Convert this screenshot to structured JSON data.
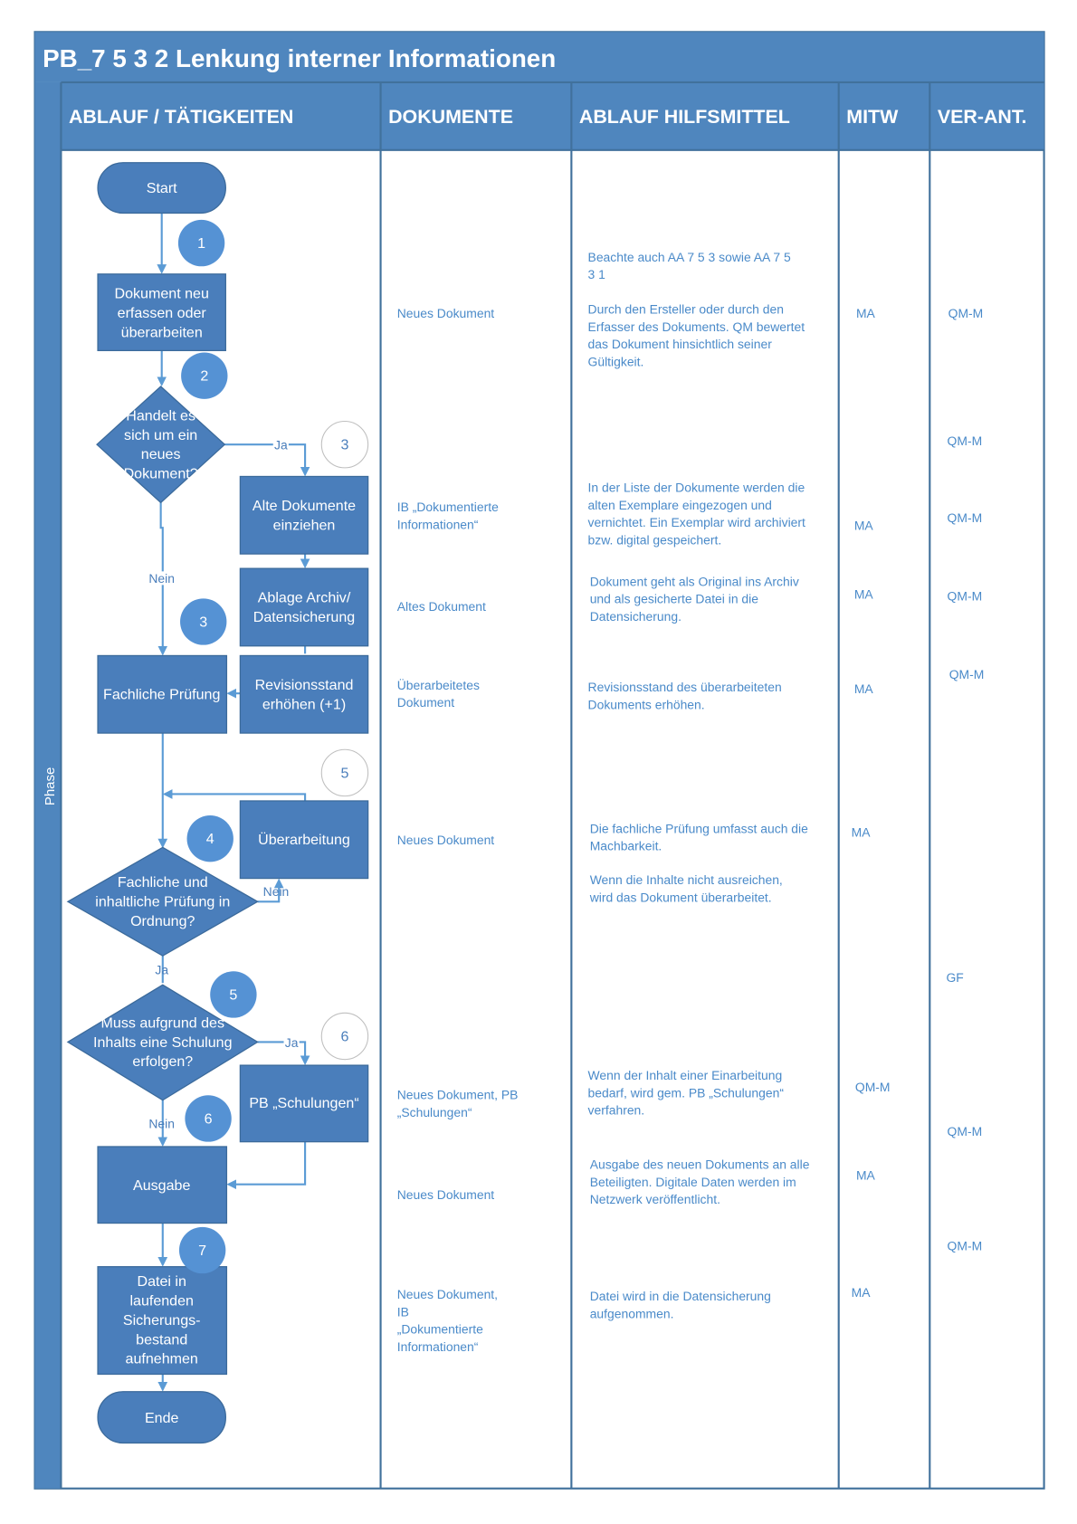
{
  "title": "PB_7 5 3 2  Lenkung interner Informationen",
  "phase_label": "Phase",
  "columns": [
    "ABLAUF / TÄTIGKEITEN",
    "DOKUMENTE",
    "ABLAUF HILFSMITTEL",
    "MITW",
    "VER-ANT."
  ],
  "colors": {
    "header": "#4f86be",
    "shape": "#4a7ebb",
    "circle": "#5592d4",
    "text": "#4a8ac9"
  },
  "flow": {
    "start": "Start",
    "end": "Ende",
    "dokument_neu": [
      "Dokument neu",
      "erfassen oder",
      "überarbeiten"
    ],
    "decision_neu": [
      "Handelt es",
      "sich um ein",
      "neues",
      "Dokument?"
    ],
    "alte_dokumente": [
      "Alte Dokumente",
      "einziehen"
    ],
    "ablage": [
      "Ablage Archiv/",
      "Datensicherung"
    ],
    "revision": [
      "Revisionsstand",
      "erhöhen (+1)"
    ],
    "fachliche_pruefung": "Fachliche Prüfung",
    "ueberarbeitung": "Überarbeitung",
    "decision_pruefung": [
      "Fachliche und",
      "inhaltliche Prüfung in",
      "Ordnung?"
    ],
    "decision_schulung": [
      "Muss aufgrund des",
      "Inhalts eine Schulung",
      "erfolgen?"
    ],
    "schulungen": "PB „Schulungen“",
    "ausgabe": "Ausgabe",
    "datei": [
      "Datei in",
      "laufenden",
      "Sicherungs-",
      "bestand",
      "aufnehmen"
    ],
    "labels": {
      "ja": "Ja",
      "nein": "Nein"
    },
    "steps": [
      "1",
      "2",
      "3",
      "3",
      "5",
      "4",
      "5",
      "6",
      "6",
      "7"
    ]
  },
  "dokumente": [
    [
      "Neues Dokument"
    ],
    [
      "IB „Dokumentierte",
      "Informationen“"
    ],
    [
      "Altes Dokument"
    ],
    [
      "Überarbeitetes",
      "Dokument"
    ],
    [
      "Neues Dokument"
    ],
    [
      "Neues Dokument, PB",
      "„Schulungen“"
    ],
    [
      "Neues Dokument"
    ],
    [
      "Neues Dokument,",
      "IB",
      "„Dokumentierte",
      "Informationen“"
    ]
  ],
  "hilfsmittel": [
    [
      "Beachte auch AA 7 5 3 sowie AA 7 5",
      "3 1"
    ],
    [
      "Durch den Ersteller oder durch den",
      "Erfasser des Dokuments. QM bewertet",
      "das Dokument hinsichtlich seiner",
      "Gültigkeit."
    ],
    [
      "In der Liste der Dokumente werden die",
      "alten Exemplare eingezogen und",
      "vernichtet. Ein Exemplar wird archiviert",
      "bzw. digital gespeichert."
    ],
    [
      "Dokument geht als Original ins Archiv",
      "und als gesicherte Datei in die",
      "Datensicherung."
    ],
    [
      "Revisionsstand des überarbeiteten",
      "Dokuments erhöhen."
    ],
    [
      "Die fachliche Prüfung umfasst auch die",
      "Machbarkeit."
    ],
    [
      "Wenn die Inhalte nicht ausreichen,",
      "wird das Dokument überarbeitet."
    ],
    [
      "Wenn der Inhalt einer Einarbeitung",
      "bedarf, wird gem. PB „Schulungen“",
      "verfahren."
    ],
    [
      "Ausgabe des neuen Dokuments an alle",
      "Beteiligten. Digitale Daten werden im",
      "Netzwerk veröffentlicht."
    ],
    [
      "Datei wird in die Datensicherung",
      "aufgenommen."
    ]
  ],
  "mitw": [
    "MA",
    "MA",
    "MA",
    "MA",
    "MA",
    "QM-M",
    "MA",
    "MA"
  ],
  "verant": [
    "QM-M",
    "QM-M",
    "QM-M",
    "QM-M",
    "QM-M",
    "GF",
    "QM-M",
    "QM-M"
  ]
}
